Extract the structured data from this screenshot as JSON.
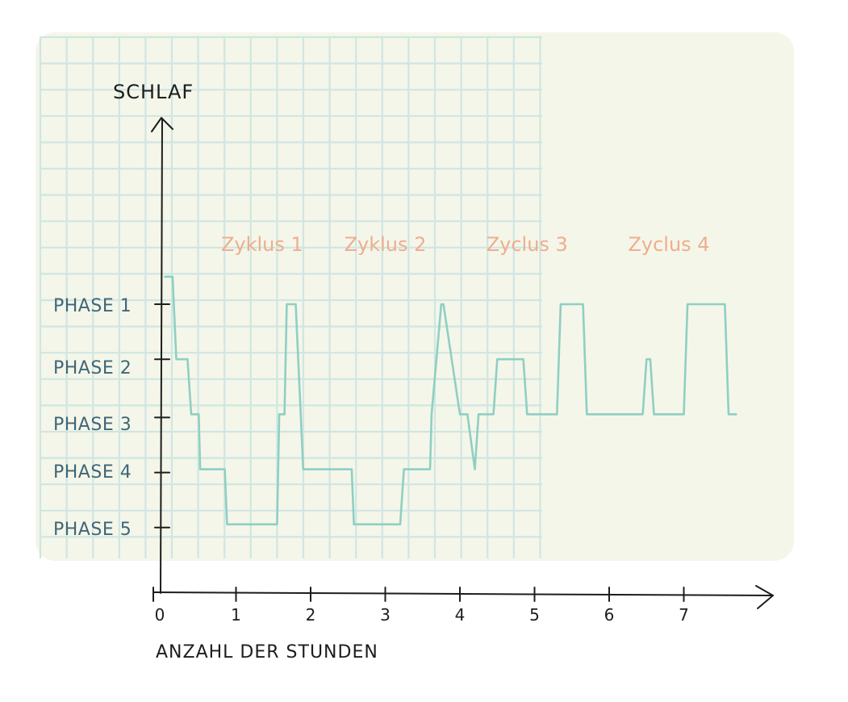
{
  "colors": {
    "paper": "#f4f6e9",
    "grid": "#cfe6e2",
    "line": "#8fcfc3",
    "axis": "#1d1d1d",
    "phase_label": "#3f6678",
    "cycle_label": "#efad8e"
  },
  "chart_data": {
    "type": "line",
    "ylabel": "SCHLAF",
    "xlabel": "ANZAHL DER STUNDEN",
    "x_ticks": [
      "0",
      "1",
      "2",
      "3",
      "4",
      "5",
      "6",
      "7"
    ],
    "xlim": [
      0,
      8
    ],
    "y_categories": [
      "PHASE 1",
      "PHASE 2",
      "PHASE 3",
      "PHASE 4",
      "PHASE 5"
    ],
    "annotations": [
      "Zyklus 1",
      "Zyklus 2",
      "Zyclus 3",
      "Zyclus 4"
    ],
    "grid": true,
    "series": [
      {
        "x": [
          0.05,
          0.15,
          0.2,
          0.35,
          0.4,
          0.5,
          0.52,
          0.85,
          0.88,
          1.55,
          1.58,
          1.65,
          1.68,
          1.75,
          1.8,
          1.9,
          1.92,
          2.0,
          2.05,
          2.55,
          2.58,
          2.75,
          3.2,
          3.25,
          3.45,
          3.5,
          3.6,
          3.62,
          3.75,
          3.78,
          4.0,
          4.1,
          4.2,
          4.25,
          4.35,
          4.45,
          4.5,
          4.6,
          4.85,
          4.9,
          5.0,
          5.3,
          5.35,
          5.5,
          5.65,
          5.7,
          6.45,
          6.5,
          6.55,
          6.6,
          6.65,
          6.7,
          6.85,
          7.0,
          7.05,
          7.15,
          7.45,
          7.55,
          7.6,
          7.7
        ],
        "y": [
          0.5,
          0.5,
          2,
          2,
          3,
          3,
          4,
          4,
          5,
          5,
          3,
          3,
          1,
          1,
          1,
          4,
          4,
          4,
          4,
          4,
          5,
          5,
          5,
          4,
          4,
          4,
          4,
          3,
          1,
          1,
          3,
          3,
          4,
          3,
          3,
          3,
          2,
          2,
          2,
          3,
          3,
          3,
          1,
          1,
          1,
          3,
          3,
          2,
          2,
          3,
          3,
          3,
          3,
          3,
          1,
          1,
          1,
          1,
          3,
          3
        ]
      }
    ],
    "annotation_x": [
      1.35,
      3.0,
      4.9,
      6.8
    ]
  }
}
